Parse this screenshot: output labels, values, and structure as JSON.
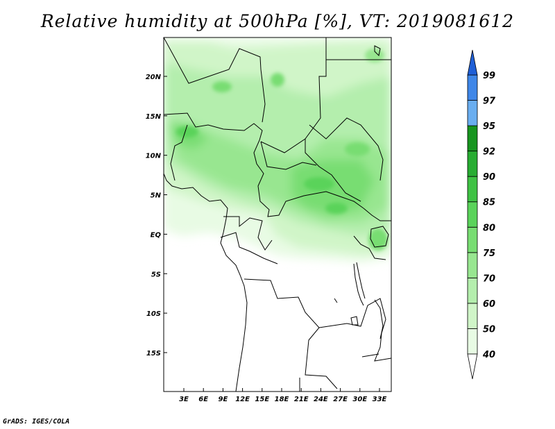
{
  "title": "Relative humidity at 500hPa [%], VT: 2019081612",
  "credit": "GrADS: IGES/COLA",
  "map": {
    "lon_labels": [
      "3E",
      "6E",
      "9E",
      "12E",
      "15E",
      "18E",
      "21E",
      "24E",
      "27E",
      "30E",
      "33E"
    ],
    "lat_labels": [
      "20N",
      "15N",
      "10N",
      "5N",
      "EQ",
      "5S",
      "10S",
      "15S"
    ]
  },
  "colorbar": {
    "levels": [
      "40",
      "50",
      "60",
      "70",
      "75",
      "80",
      "85",
      "90",
      "92",
      "95",
      "97",
      "99"
    ],
    "colors": [
      "#ffffff",
      "#e8fbe4",
      "#d0f5c8",
      "#b4eead",
      "#98e690",
      "#78dd72",
      "#5ad35a",
      "#3fc244",
      "#28ad32",
      "#17951f",
      "#6aaef0",
      "#3f87e8",
      "#1f5fd6"
    ]
  }
}
